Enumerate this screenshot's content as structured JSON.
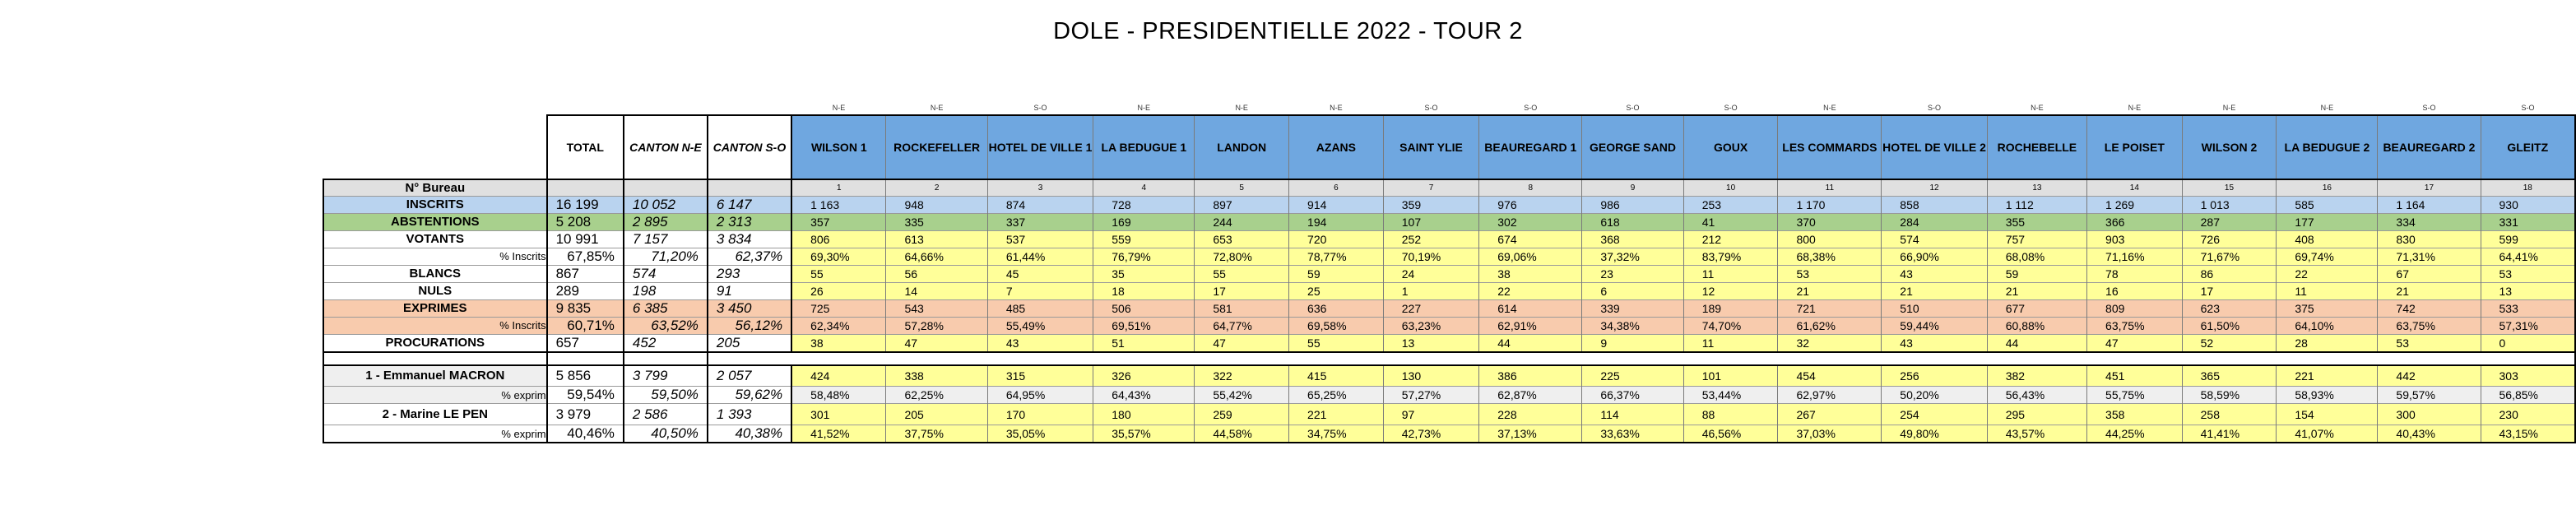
{
  "title": "DOLE - PRESIDENTIELLE 2022 - TOUR 2",
  "headers": {
    "total": "TOTAL",
    "canton_ne": "CANTON N-E",
    "canton_so": "CANTON S-O"
  },
  "bureaux": [
    {
      "zone": "N-E",
      "name": "WILSON 1",
      "num": "1"
    },
    {
      "zone": "N-E",
      "name": "ROCKEFELLER",
      "num": "2"
    },
    {
      "zone": "S-O",
      "name": "HOTEL DE VILLE 1",
      "num": "3"
    },
    {
      "zone": "N-E",
      "name": "LA BEDUGUE 1",
      "num": "4"
    },
    {
      "zone": "N-E",
      "name": "LANDON",
      "num": "5"
    },
    {
      "zone": "N-E",
      "name": "AZANS",
      "num": "6"
    },
    {
      "zone": "S-O",
      "name": "SAINT YLIE",
      "num": "7"
    },
    {
      "zone": "S-O",
      "name": "BEAUREGARD 1",
      "num": "8"
    },
    {
      "zone": "S-O",
      "name": "GEORGE SAND",
      "num": "9"
    },
    {
      "zone": "S-O",
      "name": "GOUX",
      "num": "10"
    },
    {
      "zone": "N-E",
      "name": "LES COMMARDS",
      "num": "11"
    },
    {
      "zone": "S-O",
      "name": "HOTEL DE VILLE 2",
      "num": "12"
    },
    {
      "zone": "N-E",
      "name": "ROCHEBELLE",
      "num": "13"
    },
    {
      "zone": "N-E",
      "name": "LE POISET",
      "num": "14"
    },
    {
      "zone": "N-E",
      "name": "WILSON 2",
      "num": "15"
    },
    {
      "zone": "N-E",
      "name": "LA BEDUGUE 2",
      "num": "16"
    },
    {
      "zone": "S-O",
      "name": "BEAUREGARD 2",
      "num": "17"
    },
    {
      "zone": "S-O",
      "name": "GLEITZ",
      "num": "18"
    }
  ],
  "rows": [
    {
      "key": "bureau",
      "label": "N° Bureau",
      "total": "",
      "ne": "",
      "so": ""
    },
    {
      "key": "inscrits",
      "label": "INSCRITS",
      "total": "16 199",
      "ne": "10 052",
      "so": "6 147",
      "values": [
        "1 163",
        "948",
        "874",
        "728",
        "897",
        "914",
        "359",
        "976",
        "986",
        "253",
        "1 170",
        "858",
        "1 112",
        "1 269",
        "1 013",
        "585",
        "1 164",
        "930"
      ]
    },
    {
      "key": "abstentions",
      "label": "ABSTENTIONS",
      "total": "5 208",
      "ne": "2 895",
      "so": "2 313",
      "values": [
        "357",
        "335",
        "337",
        "169",
        "244",
        "194",
        "107",
        "302",
        "618",
        "41",
        "370",
        "284",
        "355",
        "366",
        "287",
        "177",
        "334",
        "331"
      ]
    },
    {
      "key": "votants",
      "label": "VOTANTS",
      "total": "10 991",
      "ne": "7 157",
      "so": "3 834",
      "values": [
        "806",
        "613",
        "537",
        "559",
        "653",
        "720",
        "252",
        "674",
        "368",
        "212",
        "800",
        "574",
        "757",
        "903",
        "726",
        "408",
        "830",
        "599"
      ]
    },
    {
      "key": "votants_pct",
      "label": "% Inscrits",
      "total": "67,85%",
      "ne": "71,20%",
      "so": "62,37%",
      "values": [
        "69,30%",
        "64,66%",
        "61,44%",
        "76,79%",
        "72,80%",
        "78,77%",
        "70,19%",
        "69,06%",
        "37,32%",
        "83,79%",
        "68,38%",
        "66,90%",
        "68,08%",
        "71,16%",
        "71,67%",
        "69,74%",
        "71,31%",
        "64,41%"
      ]
    },
    {
      "key": "blancs",
      "label": "BLANCS",
      "total": "867",
      "ne": "574",
      "so": "293",
      "values": [
        "55",
        "56",
        "45",
        "35",
        "55",
        "59",
        "24",
        "38",
        "23",
        "11",
        "53",
        "43",
        "59",
        "78",
        "86",
        "22",
        "67",
        "53"
      ]
    },
    {
      "key": "nuls",
      "label": "NULS",
      "total": "289",
      "ne": "198",
      "so": "91",
      "values": [
        "26",
        "14",
        "7",
        "18",
        "17",
        "25",
        "1",
        "22",
        "6",
        "12",
        "21",
        "21",
        "21",
        "16",
        "17",
        "11",
        "21",
        "13"
      ]
    },
    {
      "key": "exprimes",
      "label": "EXPRIMES",
      "total": "9 835",
      "ne": "6 385",
      "so": "3 450",
      "values": [
        "725",
        "543",
        "485",
        "506",
        "581",
        "636",
        "227",
        "614",
        "339",
        "189",
        "721",
        "510",
        "677",
        "809",
        "623",
        "375",
        "742",
        "533"
      ]
    },
    {
      "key": "exprimes_pct",
      "label": "% Inscrits",
      "total": "60,71%",
      "ne": "63,52%",
      "so": "56,12%",
      "values": [
        "62,34%",
        "57,28%",
        "55,49%",
        "69,51%",
        "64,77%",
        "69,58%",
        "63,23%",
        "62,91%",
        "34,38%",
        "74,70%",
        "61,62%",
        "59,44%",
        "60,88%",
        "63,75%",
        "61,50%",
        "64,10%",
        "63,75%",
        "57,31%"
      ]
    },
    {
      "key": "procurations",
      "label": "PROCURATIONS",
      "total": "657",
      "ne": "452",
      "so": "205",
      "values": [
        "38",
        "47",
        "43",
        "51",
        "47",
        "55",
        "13",
        "44",
        "9",
        "11",
        "32",
        "43",
        "44",
        "47",
        "52",
        "28",
        "53",
        "0"
      ]
    },
    {
      "key": "macron",
      "label": "1 - Emmanuel MACRON",
      "total": "5 856",
      "ne": "3 799",
      "so": "2 057",
      "values": [
        "424",
        "338",
        "315",
        "326",
        "322",
        "415",
        "130",
        "386",
        "225",
        "101",
        "454",
        "256",
        "382",
        "451",
        "365",
        "221",
        "442",
        "303"
      ]
    },
    {
      "key": "macron_pct",
      "label": "% exprim",
      "total": "59,54%",
      "ne": "59,50%",
      "so": "59,62%",
      "values": [
        "58,48%",
        "62,25%",
        "64,95%",
        "64,43%",
        "55,42%",
        "65,25%",
        "57,27%",
        "62,87%",
        "66,37%",
        "53,44%",
        "62,97%",
        "50,20%",
        "56,43%",
        "55,75%",
        "58,59%",
        "58,93%",
        "59,57%",
        "56,85%"
      ]
    },
    {
      "key": "lepen",
      "label": "2 - Marine LE PEN",
      "total": "3 979",
      "ne": "2 586",
      "so": "1 393",
      "values": [
        "301",
        "205",
        "170",
        "180",
        "259",
        "221",
        "97",
        "228",
        "114",
        "88",
        "267",
        "254",
        "295",
        "358",
        "258",
        "154",
        "300",
        "230"
      ]
    },
    {
      "key": "lepen_pct",
      "label": "% exprim",
      "total": "40,46%",
      "ne": "40,50%",
      "so": "40,38%",
      "values": [
        "41,52%",
        "37,75%",
        "35,05%",
        "35,57%",
        "44,58%",
        "34,75%",
        "42,73%",
        "37,13%",
        "33,63%",
        "46,56%",
        "37,03%",
        "49,80%",
        "43,57%",
        "44,25%",
        "41,41%",
        "41,07%",
        "40,43%",
        "43,15%"
      ]
    }
  ],
  "colors": {
    "header_bureau": "#6fa7e0",
    "bureau_row": "#e0e0e0",
    "inscrits": "#b9d3ef",
    "abstentions": "#a8d08d",
    "data_yellow": "#ffff99",
    "exprimes": "#f8cbad",
    "candidate_label": "#efefef"
  }
}
